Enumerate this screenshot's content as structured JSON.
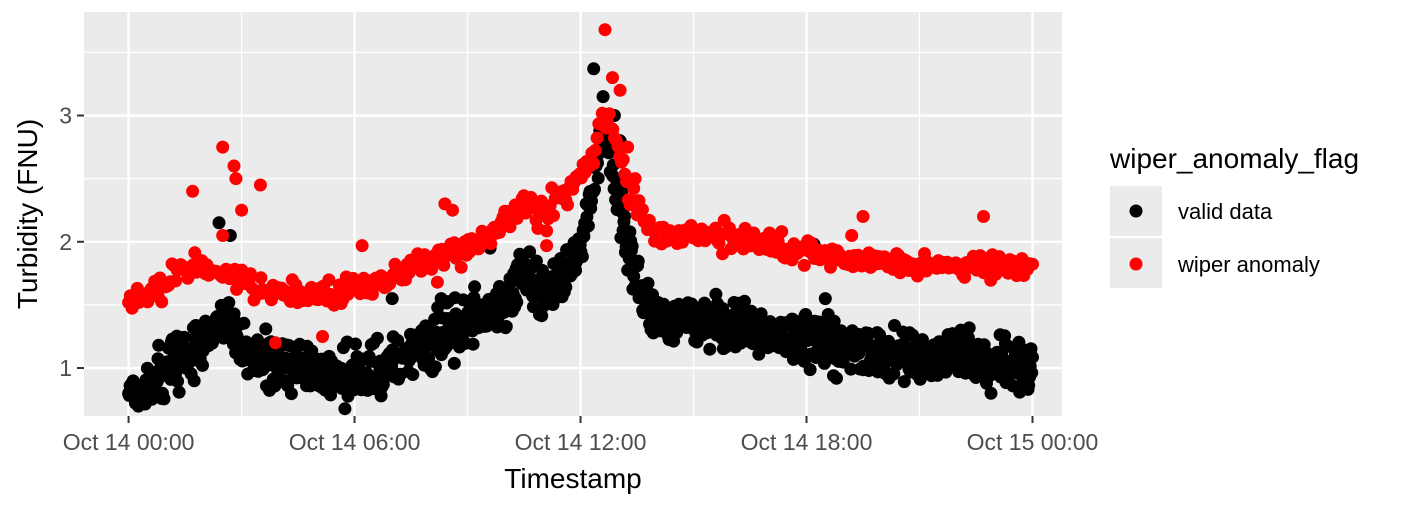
{
  "chart_data": {
    "type": "scatter",
    "title": "",
    "xlabel": "Timestamp",
    "ylabel": "Turbidity (FNU)",
    "x_type": "datetime",
    "xlim": [
      "2023-10-13T22:49",
      "2023-10-15T00:47"
    ],
    "ylim": [
      0.62,
      3.82
    ],
    "x_ticks": [
      "2023-10-14T00:00",
      "2023-10-14T06:00",
      "2023-10-14T12:00",
      "2023-10-14T18:00",
      "2023-10-15T00:00"
    ],
    "x_tick_labels": [
      "Oct 14 00:00",
      "Oct 14 06:00",
      "Oct 14 12:00",
      "Oct 14 18:00",
      "Oct 15 00:00"
    ],
    "x_minor_ticks": [
      "2023-10-14T03:00",
      "2023-10-14T09:00",
      "2023-10-14T15:00",
      "2023-10-14T21:00"
    ],
    "y_ticks": [
      1,
      2,
      3
    ],
    "y_tick_labels": [
      "1",
      "2",
      "3"
    ],
    "y_minor_ticks": [
      1.5,
      2.5,
      3.5
    ],
    "grid": true,
    "legend": {
      "title": "wiper_anomaly_flag",
      "position": "right",
      "entries": [
        {
          "label": "valid data",
          "color": "#000000"
        },
        {
          "label": "wiper anomaly",
          "color": "#ff0000"
        }
      ]
    },
    "series": [
      {
        "name": "valid data",
        "color": "#000000",
        "profile_hours": [
          0,
          0.5,
          1,
          1.5,
          2,
          2.5,
          3,
          4,
          5,
          5.5,
          6,
          7,
          8,
          9,
          10,
          10.5,
          11,
          11.5,
          12,
          12.3,
          12.6,
          12.9,
          13.2,
          13.6,
          14,
          15,
          16,
          17,
          18,
          19,
          20,
          21,
          22,
          23,
          24
        ],
        "profile_values": [
          0.8,
          0.88,
          0.95,
          1.05,
          1.2,
          1.4,
          1.2,
          1.02,
          1.0,
          0.95,
          0.92,
          1.05,
          1.2,
          1.35,
          1.55,
          1.75,
          1.6,
          1.7,
          1.95,
          2.4,
          2.85,
          2.5,
          2.05,
          1.55,
          1.42,
          1.4,
          1.36,
          1.28,
          1.22,
          1.16,
          1.12,
          1.1,
          1.08,
          1.05,
          1.0
        ],
        "spread": 0.1,
        "n_points": 1200,
        "outliers": [
          [
            2.4,
            2.15
          ],
          [
            2.7,
            2.05
          ],
          [
            8.3,
            1.55
          ],
          [
            9.6,
            1.95
          ],
          [
            12.35,
            3.37
          ],
          [
            12.6,
            3.15
          ],
          [
            12.9,
            3.0
          ],
          [
            13.05,
            2.8
          ],
          [
            18.2,
            1.98
          ],
          [
            18.5,
            1.55
          ],
          [
            22,
            1.27
          ],
          [
            7,
            1.55
          ]
        ]
      },
      {
        "name": "wiper anomaly",
        "color": "#ff0000",
        "profile_hours": [
          0,
          0.5,
          1,
          1.5,
          2,
          2.5,
          3,
          3.5,
          4,
          5,
          5.5,
          6,
          7,
          8,
          9,
          10,
          10.5,
          11,
          11.5,
          12,
          12.3,
          12.6,
          12.9,
          13.3,
          14,
          15,
          16,
          17,
          18,
          19,
          20,
          21,
          22,
          23,
          24
        ],
        "profile_values": [
          1.52,
          1.6,
          1.68,
          1.78,
          1.8,
          1.75,
          1.7,
          1.62,
          1.6,
          1.57,
          1.58,
          1.62,
          1.72,
          1.85,
          1.95,
          2.15,
          2.3,
          2.2,
          2.35,
          2.5,
          2.65,
          3.0,
          2.85,
          2.4,
          2.05,
          2.05,
          2.02,
          1.97,
          1.92,
          1.88,
          1.84,
          1.82,
          1.8,
          1.8,
          1.8
        ],
        "spread": 0.05,
        "n_points": 520,
        "outliers": [
          [
            1.7,
            2.4
          ],
          [
            2.5,
            2.75
          ],
          [
            2.8,
            2.6
          ],
          [
            2.85,
            2.5
          ],
          [
            3,
            2.25
          ],
          [
            3.5,
            2.45
          ],
          [
            2.5,
            2.05
          ],
          [
            3.9,
            1.2
          ],
          [
            5.15,
            1.25
          ],
          [
            6.2,
            1.97
          ],
          [
            8.4,
            2.3
          ],
          [
            8.6,
            2.25
          ],
          [
            8.2,
            1.68
          ],
          [
            11.1,
            1.97
          ],
          [
            12.65,
            3.68
          ],
          [
            12.85,
            3.3
          ],
          [
            13.05,
            3.2
          ],
          [
            13.25,
            2.75
          ],
          [
            13.45,
            2.5
          ],
          [
            19.5,
            2.2
          ],
          [
            19.2,
            2.05
          ],
          [
            22.7,
            2.2
          ]
        ]
      }
    ]
  }
}
